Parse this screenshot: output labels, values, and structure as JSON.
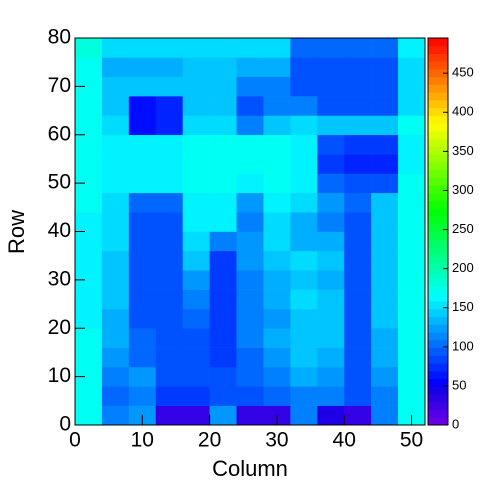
{
  "chart_data": {
    "type": "heatmap",
    "x_label": "Column",
    "y_label": "Row",
    "xbins": [
      0,
      4,
      8,
      12,
      16,
      20,
      24,
      28,
      32,
      36,
      40,
      44,
      48,
      52
    ],
    "ybins": [
      0,
      4,
      8,
      12,
      16,
      20,
      24,
      28,
      32,
      36,
      40,
      44,
      48,
      52,
      56,
      60,
      64,
      68,
      72,
      76,
      80
    ],
    "z": [
      [
        170,
        110,
        120,
        30,
        30,
        120,
        30,
        30,
        110,
        40,
        30,
        110,
        170
      ],
      [
        170,
        100,
        110,
        80,
        80,
        90,
        90,
        100,
        110,
        110,
        90,
        110,
        170
      ],
      [
        170,
        110,
        120,
        90,
        90,
        90,
        100,
        110,
        130,
        120,
        90,
        120,
        170
      ],
      [
        170,
        120,
        100,
        90,
        90,
        80,
        100,
        120,
        140,
        130,
        90,
        130,
        170
      ],
      [
        170,
        130,
        100,
        90,
        90,
        80,
        110,
        130,
        140,
        140,
        90,
        130,
        170
      ],
      [
        160,
        130,
        90,
        90,
        100,
        80,
        110,
        120,
        140,
        140,
        90,
        140,
        170
      ],
      [
        160,
        140,
        90,
        90,
        110,
        80,
        110,
        130,
        150,
        140,
        90,
        140,
        170
      ],
      [
        160,
        140,
        90,
        90,
        120,
        80,
        110,
        130,
        140,
        130,
        90,
        140,
        170
      ],
      [
        160,
        140,
        90,
        90,
        140,
        80,
        120,
        140,
        150,
        140,
        90,
        140,
        170
      ],
      [
        160,
        150,
        90,
        90,
        150,
        110,
        120,
        150,
        130,
        130,
        90,
        140,
        170
      ],
      [
        160,
        150,
        90,
        90,
        160,
        160,
        110,
        150,
        130,
        110,
        90,
        140,
        170
      ],
      [
        170,
        150,
        100,
        100,
        160,
        160,
        120,
        160,
        150,
        120,
        100,
        140,
        170
      ],
      [
        170,
        160,
        160,
        160,
        170,
        170,
        160,
        170,
        160,
        100,
        90,
        90,
        170
      ],
      [
        170,
        160,
        160,
        160,
        170,
        170,
        170,
        170,
        160,
        80,
        70,
        70,
        160
      ],
      [
        170,
        160,
        160,
        160,
        170,
        170,
        170,
        170,
        160,
        90,
        80,
        80,
        160
      ],
      [
        170,
        150,
        60,
        70,
        150,
        150,
        110,
        140,
        150,
        140,
        140,
        140,
        170
      ],
      [
        170,
        140,
        60,
        70,
        140,
        140,
        90,
        110,
        110,
        90,
        90,
        90,
        150
      ],
      [
        170,
        140,
        140,
        140,
        140,
        140,
        110,
        110,
        90,
        90,
        90,
        90,
        150
      ],
      [
        170,
        130,
        130,
        130,
        140,
        140,
        130,
        130,
        90,
        90,
        90,
        90,
        150
      ],
      [
        180,
        150,
        150,
        150,
        150,
        150,
        150,
        150,
        100,
        100,
        100,
        100,
        160
      ]
    ],
    "xlim": [
      0,
      52
    ],
    "xticks": [
      0,
      10,
      20,
      30,
      40,
      50
    ],
    "ylim": [
      0,
      80
    ],
    "yticks": [
      0,
      10,
      20,
      30,
      40,
      50,
      60,
      70,
      80
    ],
    "zlim": [
      0,
      495
    ],
    "zticks": [
      0,
      50,
      100,
      150,
      200,
      250,
      300,
      350,
      400,
      450
    ],
    "colormap": "rainbow"
  }
}
